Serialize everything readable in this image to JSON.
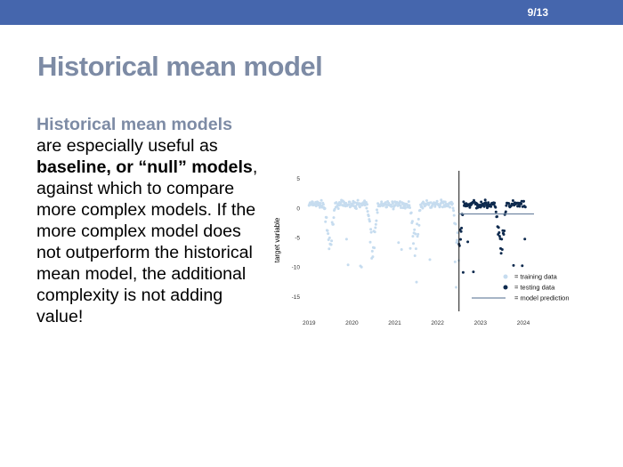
{
  "slide": {
    "page_number": "9/13",
    "title": "Historical mean model",
    "body": {
      "lead": "Historical mean models",
      "part1": " are especially useful as ",
      "bold1": "baseline, or “null” models",
      "part2": ", against which to compare more complex models. If the more complex model does not outperform the historical mean model, the additional complexity is not adding value!"
    }
  },
  "colors": {
    "bar": "#4566ad",
    "title": "#7d8ba5",
    "training": "#c6dcef",
    "testing": "#0e2a4e",
    "prediction": "#7188a3"
  },
  "chart_data": {
    "type": "scatter",
    "ylabel": "target variable",
    "xlabel": "",
    "x_ticks": [
      "2019",
      "2020",
      "2021",
      "2022",
      "2023",
      "2024"
    ],
    "y_ticks": [
      5,
      0,
      -5,
      -10,
      -15
    ],
    "xlim": [
      2018.85,
      2024.25
    ],
    "ylim": [
      -17.5,
      6
    ],
    "split_year": 2022.5,
    "prediction": {
      "start": 2022.5,
      "end": 2024.25,
      "value": -1
    },
    "legend": {
      "position": "bottom-right",
      "entries": [
        {
          "key": "training",
          "label": "= training data"
        },
        {
          "key": "testing",
          "label": "= testing data"
        },
        {
          "key": "prediction",
          "label": "= model prediction"
        }
      ]
    },
    "series": [
      {
        "key": "training",
        "start": 2019.0,
        "end": 2022.5
      },
      {
        "key": "testing",
        "start": 2022.5,
        "end": 2024.05
      }
    ]
  }
}
